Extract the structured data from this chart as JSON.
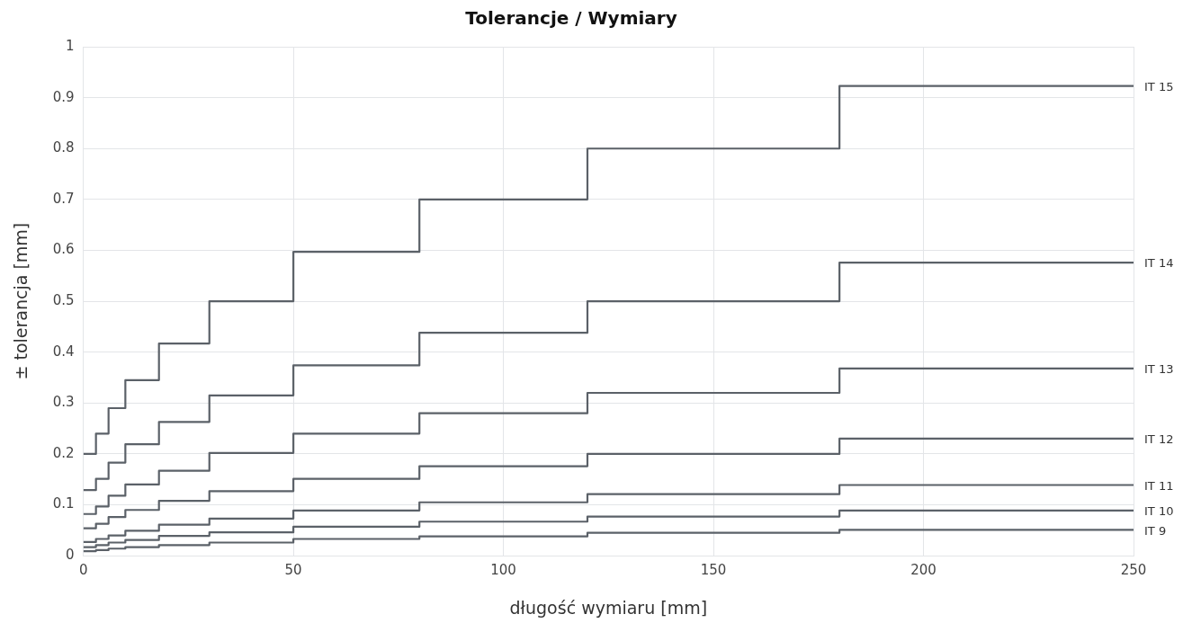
{
  "chart_data": {
    "type": "step",
    "title": "Tolerancje / Wymiary",
    "xlabel": "długość wymiaru [mm]",
    "ylabel": "± tolerancja [mm]",
    "x": [
      0,
      3,
      6,
      10,
      18,
      30,
      50,
      80,
      120,
      180,
      250
    ],
    "series": [
      {
        "name": "IT 15",
        "color": "#5b6168",
        "values": [
          0.2,
          0.24,
          0.29,
          0.345,
          0.417,
          0.5,
          0.597,
          0.7,
          0.8,
          0.923,
          0.923
        ]
      },
      {
        "name": "IT 14",
        "color": "#5b6168",
        "values": [
          0.129,
          0.151,
          0.183,
          0.219,
          0.263,
          0.315,
          0.374,
          0.438,
          0.5,
          0.576,
          0.576
        ]
      },
      {
        "name": "IT 13",
        "color": "#5b6168",
        "values": [
          0.082,
          0.097,
          0.118,
          0.14,
          0.167,
          0.202,
          0.24,
          0.28,
          0.32,
          0.368,
          0.368
        ]
      },
      {
        "name": "IT 12",
        "color": "#5b6168",
        "values": [
          0.054,
          0.063,
          0.076,
          0.09,
          0.108,
          0.127,
          0.151,
          0.176,
          0.2,
          0.23,
          0.23
        ]
      },
      {
        "name": "IT 11",
        "color": "#5b6168",
        "values": [
          0.027,
          0.033,
          0.04,
          0.049,
          0.061,
          0.073,
          0.089,
          0.105,
          0.121,
          0.139,
          0.139
        ]
      },
      {
        "name": "IT 10",
        "color": "#5b6168",
        "values": [
          0.017,
          0.021,
          0.026,
          0.031,
          0.039,
          0.046,
          0.057,
          0.067,
          0.077,
          0.089,
          0.089
        ]
      },
      {
        "name": "IT 9",
        "color": "#5b6168",
        "values": [
          0.009,
          0.011,
          0.014,
          0.017,
          0.021,
          0.026,
          0.033,
          0.038,
          0.045,
          0.051,
          0.051
        ]
      }
    ],
    "xlim": [
      0,
      250
    ],
    "xticks": [
      0,
      50,
      100,
      150,
      200,
      250
    ],
    "ylim": [
      0,
      1
    ],
    "yticks": [
      0,
      0.1,
      0.2,
      0.3,
      0.4,
      0.5,
      0.6,
      0.7,
      0.8,
      0.9,
      1
    ],
    "grid": true,
    "legend": false
  }
}
